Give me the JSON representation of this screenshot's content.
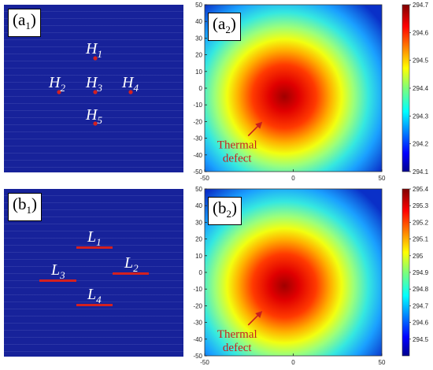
{
  "panel_labels": {
    "a1": {
      "base": "(a",
      "sub": "1",
      "close": ")"
    },
    "a2": {
      "base": "(a",
      "sub": "2",
      "close": ")"
    },
    "b1": {
      "base": "(b",
      "sub": "1",
      "close": ")"
    },
    "b2": {
      "base": "(b",
      "sub": "2",
      "close": ")"
    }
  },
  "heat_points": [
    {
      "letter": "H",
      "sub": "1"
    },
    {
      "letter": "H",
      "sub": "2"
    },
    {
      "letter": "H",
      "sub": "3"
    },
    {
      "letter": "H",
      "sub": "4"
    },
    {
      "letter": "H",
      "sub": "5"
    }
  ],
  "heat_lines": [
    {
      "letter": "L",
      "sub": "1"
    },
    {
      "letter": "L",
      "sub": "2"
    },
    {
      "letter": "L",
      "sub": "3"
    },
    {
      "letter": "L",
      "sub": "4"
    }
  ],
  "annotation": {
    "line1": "Thermal",
    "line2": "defect"
  },
  "colors": {
    "schematic_bg": "#17229a",
    "marker": "#d42020",
    "annotation": "#c81e1e"
  },
  "chart_data": [
    {
      "type": "heatmap",
      "panel": "a2",
      "xlim": [
        -50,
        50
      ],
      "ylim": [
        -50,
        50
      ],
      "x_ticks": [
        -50,
        0,
        50
      ],
      "y_ticks": [
        50,
        40,
        30,
        20,
        10,
        0,
        -10,
        -20,
        -30,
        -40,
        -50
      ],
      "colorbar": {
        "min": 294.1,
        "max": 294.7,
        "colormap": "jet",
        "ticks": [
          "294.7",
          "294.6",
          "294.5",
          "294.4",
          "294.3",
          "294.2",
          "294.1"
        ]
      },
      "hot_spot": {
        "x": -5,
        "y": -5
      }
    },
    {
      "type": "heatmap",
      "panel": "b2",
      "xlim": [
        -50,
        50
      ],
      "ylim": [
        -50,
        50
      ],
      "x_ticks": [
        -50,
        0,
        50
      ],
      "y_ticks": [
        50,
        40,
        30,
        20,
        10,
        0,
        -10,
        -20,
        -30,
        -40,
        -50
      ],
      "colorbar": {
        "min": 294.4,
        "max": 295.4,
        "colormap": "jet",
        "ticks": [
          "295.4",
          "295.3",
          "295.2",
          "295.1",
          "295",
          "294.9",
          "294.8",
          "294.7",
          "294.6",
          "294.5"
        ]
      },
      "hot_spot": {
        "x": -5,
        "y": -8
      }
    }
  ]
}
